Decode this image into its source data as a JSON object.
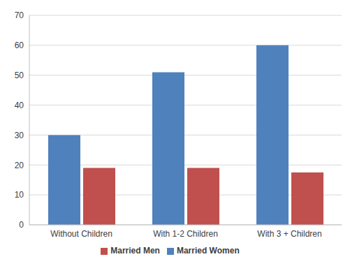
{
  "chart_data": {
    "type": "bar",
    "categories": [
      "Without Children",
      "With 1-2 Children",
      "With 3 + Children"
    ],
    "series": [
      {
        "name": "Married Women",
        "color": "#4f81bd",
        "values": [
          30,
          51,
          60
        ]
      },
      {
        "name": "Married Men",
        "color": "#c0504d",
        "values": [
          19,
          19,
          17.5
        ]
      }
    ],
    "ylim": [
      0,
      70
    ],
    "yticks": [
      0,
      10,
      20,
      30,
      40,
      50,
      60,
      70
    ],
    "grid": true,
    "legend": "bottom"
  }
}
